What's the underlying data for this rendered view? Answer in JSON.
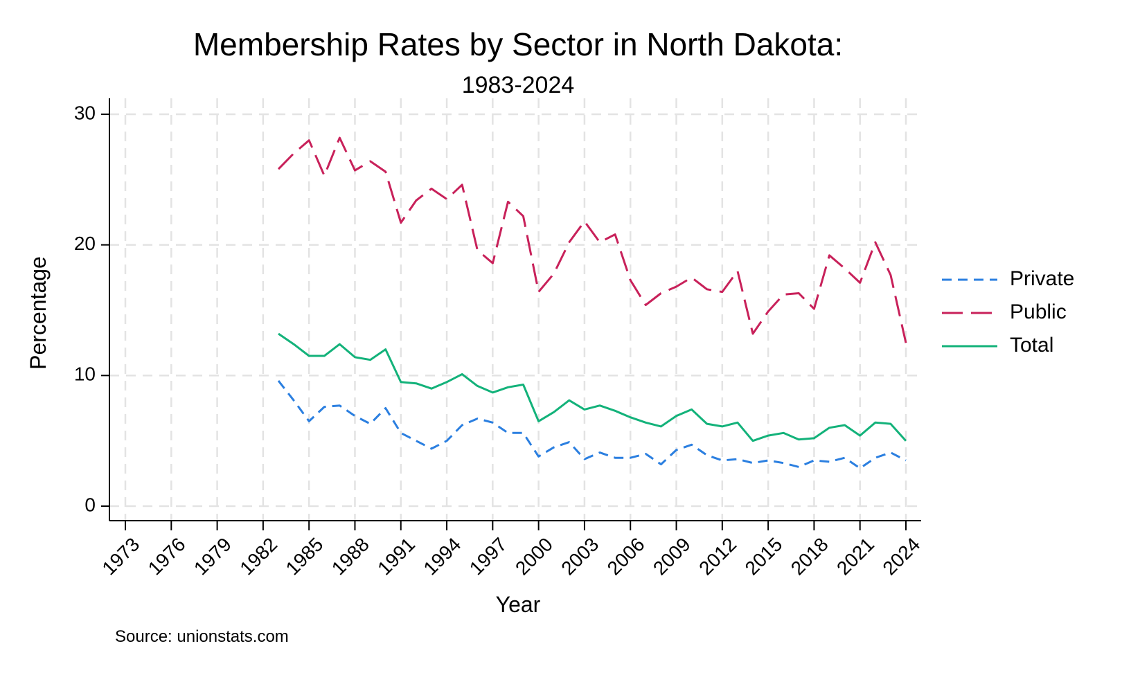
{
  "chart_data": {
    "type": "line",
    "title": "Membership Rates by Sector in North Dakota:",
    "subtitle": "1983-2024",
    "xlabel": "Year",
    "ylabel": "Percentage",
    "source": "Source: unionstats.com",
    "xlim": [
      1973,
      2024
    ],
    "ylim": [
      0,
      30
    ],
    "x_ticks": [
      "1973",
      "1976",
      "1979",
      "1982",
      "1985",
      "1988",
      "1991",
      "1994",
      "1997",
      "2000",
      "2003",
      "2006",
      "2009",
      "2012",
      "2015",
      "2018",
      "2021",
      "2024"
    ],
    "y_ticks": [
      "0",
      "10",
      "20",
      "30"
    ],
    "grid": true,
    "legend_position": "right",
    "x": [
      1983,
      1984,
      1985,
      1986,
      1987,
      1988,
      1989,
      1990,
      1991,
      1992,
      1993,
      1994,
      1995,
      1996,
      1997,
      1998,
      1999,
      2000,
      2001,
      2002,
      2003,
      2004,
      2005,
      2006,
      2007,
      2008,
      2009,
      2010,
      2011,
      2012,
      2013,
      2014,
      2015,
      2016,
      2017,
      2018,
      2019,
      2020,
      2021,
      2022,
      2023,
      2024
    ],
    "series": [
      {
        "name": "Private",
        "color": "#2b7fe0",
        "dash": "short",
        "values": [
          9.6,
          8.1,
          6.5,
          7.6,
          7.7,
          6.9,
          6.3,
          7.5,
          5.6,
          5.0,
          4.4,
          5.0,
          6.2,
          6.7,
          6.4,
          5.6,
          5.6,
          3.8,
          4.5,
          4.9,
          3.6,
          4.1,
          3.7,
          3.7,
          4.0,
          3.2,
          4.3,
          4.7,
          3.9,
          3.5,
          3.6,
          3.3,
          3.5,
          3.3,
          3.0,
          3.5,
          3.4,
          3.7,
          2.9,
          3.7,
          4.1,
          3.5
        ]
      },
      {
        "name": "Public",
        "color": "#c8215a",
        "dash": "long",
        "values": [
          25.8,
          27.0,
          28.0,
          25.3,
          28.2,
          25.7,
          26.4,
          25.6,
          21.7,
          23.4,
          24.3,
          23.5,
          24.6,
          19.6,
          18.6,
          23.3,
          22.2,
          16.4,
          17.8,
          20.2,
          21.8,
          20.2,
          20.8,
          17.3,
          15.4,
          16.3,
          16.8,
          17.5,
          16.6,
          16.4,
          18.0,
          13.2,
          14.9,
          16.2,
          16.3,
          15.1,
          19.2,
          18.2,
          17.1,
          20.2,
          17.7,
          12.5
        ]
      },
      {
        "name": "Total",
        "color": "#13b27a",
        "dash": "solid",
        "values": [
          13.2,
          12.4,
          11.5,
          11.5,
          12.4,
          11.4,
          11.2,
          12.0,
          9.5,
          9.4,
          9.0,
          9.5,
          10.1,
          9.2,
          8.7,
          9.1,
          9.3,
          6.5,
          7.2,
          8.1,
          7.4,
          7.7,
          7.3,
          6.8,
          6.4,
          6.1,
          6.9,
          7.4,
          6.3,
          6.1,
          6.4,
          5.0,
          5.4,
          5.6,
          5.1,
          5.2,
          6.0,
          6.2,
          5.4,
          6.4,
          6.3,
          5.0
        ]
      }
    ]
  }
}
